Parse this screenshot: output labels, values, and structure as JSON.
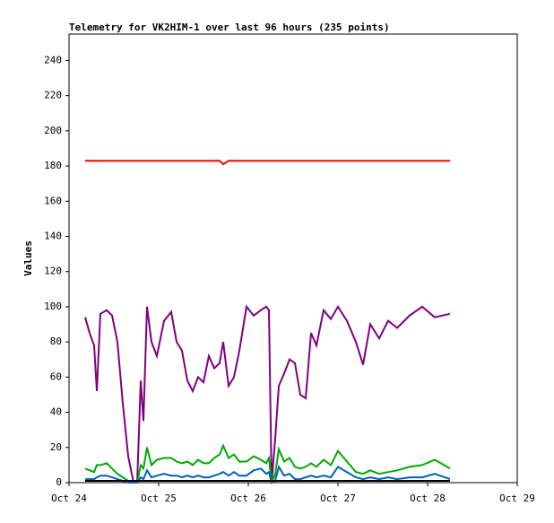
{
  "chart_data": {
    "type": "line",
    "title": "Telemetry for VK2HIM-1 over last 96 hours (235 points)",
    "y_label": "Values",
    "x": [
      24.18,
      24.23,
      24.28,
      24.31,
      24.35,
      24.42,
      24.48,
      24.54,
      24.6,
      24.66,
      24.72,
      24.76,
      24.8,
      24.83,
      24.87,
      24.92,
      24.98,
      25.06,
      25.14,
      25.2,
      25.26,
      25.32,
      25.38,
      25.44,
      25.5,
      25.56,
      25.62,
      25.68,
      25.72,
      25.78,
      25.84,
      25.9,
      25.98,
      26.06,
      26.14,
      26.2,
      26.23,
      26.26,
      26.3,
      26.34,
      26.4,
      26.46,
      26.52,
      26.58,
      26.64,
      26.7,
      26.76,
      26.84,
      26.92,
      27.0,
      27.1,
      27.2,
      27.28,
      27.36,
      27.46,
      27.56,
      27.66,
      27.8,
      27.94,
      28.08,
      28.25
    ],
    "series": [
      {
        "color": "#ff0000",
        "values": [
          183,
          183,
          183,
          183,
          183,
          183,
          183,
          183,
          183,
          183,
          183,
          183,
          183,
          183,
          183,
          183,
          183,
          183,
          183,
          183,
          183,
          183,
          183,
          183,
          183,
          183,
          183,
          183,
          181,
          183,
          183,
          183,
          183,
          183,
          183,
          183,
          183,
          183,
          183,
          183,
          183,
          183,
          183,
          183,
          183,
          183,
          183,
          183,
          183,
          183,
          183,
          183,
          183,
          183,
          183,
          183,
          183,
          183,
          183,
          183,
          183
        ]
      },
      {
        "color": "#800080",
        "values": [
          94,
          85,
          78,
          52,
          96,
          98,
          95,
          80,
          45,
          15,
          0,
          0,
          58,
          35,
          100,
          80,
          72,
          92,
          97,
          80,
          75,
          58,
          52,
          60,
          57,
          72,
          65,
          68,
          80,
          55,
          60,
          75,
          100,
          95,
          98,
          100,
          98,
          0,
          25,
          55,
          62,
          70,
          68,
          50,
          48,
          85,
          78,
          98,
          93,
          100,
          92,
          80,
          67,
          90,
          82,
          92,
          88,
          95,
          100,
          94,
          96
        ]
      },
      {
        "color": "#00aa00",
        "values": [
          8,
          7,
          6,
          10,
          10,
          11,
          8,
          5,
          3,
          1,
          0,
          0,
          10,
          8,
          20,
          10,
          13,
          14,
          14,
          12,
          11,
          12,
          10,
          13,
          11,
          11,
          14,
          16,
          21,
          14,
          16,
          12,
          12,
          15,
          13,
          11,
          14,
          0,
          5,
          19,
          12,
          14,
          9,
          8,
          9,
          11,
          9,
          13,
          10,
          18,
          12,
          6,
          5,
          7,
          5,
          6,
          7,
          9,
          10,
          13,
          8
        ]
      },
      {
        "color": "#0060c0",
        "values": [
          2,
          2,
          2,
          3,
          4,
          4,
          3,
          2,
          1,
          0,
          0,
          0,
          3,
          2,
          7,
          3,
          4,
          5,
          4,
          4,
          3,
          4,
          3,
          4,
          3,
          3,
          4,
          5,
          6,
          4,
          6,
          4,
          4,
          7,
          8,
          5,
          6,
          0,
          1,
          9,
          4,
          5,
          2,
          2,
          3,
          4,
          3,
          4,
          3,
          9,
          6,
          3,
          2,
          3,
          2,
          3,
          2,
          3,
          3,
          5,
          2
        ]
      },
      {
        "color": "#000000",
        "values": [
          1,
          1,
          1,
          1,
          1,
          1,
          1,
          1,
          1,
          1,
          1,
          1,
          1,
          1,
          1,
          1,
          1,
          1,
          1,
          1,
          1,
          1,
          1,
          1,
          1,
          1,
          1,
          1,
          1,
          1,
          1,
          1,
          1,
          1,
          1,
          1,
          1,
          1,
          1,
          1,
          1,
          1,
          1,
          1,
          1,
          1,
          1,
          1,
          1,
          1,
          1,
          1,
          1,
          1,
          1,
          1,
          1,
          1,
          1,
          1,
          1
        ]
      }
    ],
    "xlim": [
      24,
      29
    ],
    "xticks": [
      {
        "value": 24,
        "label": "Oct 24"
      },
      {
        "value": 25,
        "label": "Oct 25"
      },
      {
        "value": 26,
        "label": "Oct 26"
      },
      {
        "value": 27,
        "label": "Oct 27"
      },
      {
        "value": 28,
        "label": "Oct 28"
      },
      {
        "value": 29,
        "label": "Oct 29"
      }
    ],
    "ylim": [
      0,
      255
    ],
    "yticks": [
      0,
      20,
      40,
      60,
      80,
      100,
      120,
      140,
      160,
      180,
      200,
      220,
      240
    ],
    "grid": false
  }
}
